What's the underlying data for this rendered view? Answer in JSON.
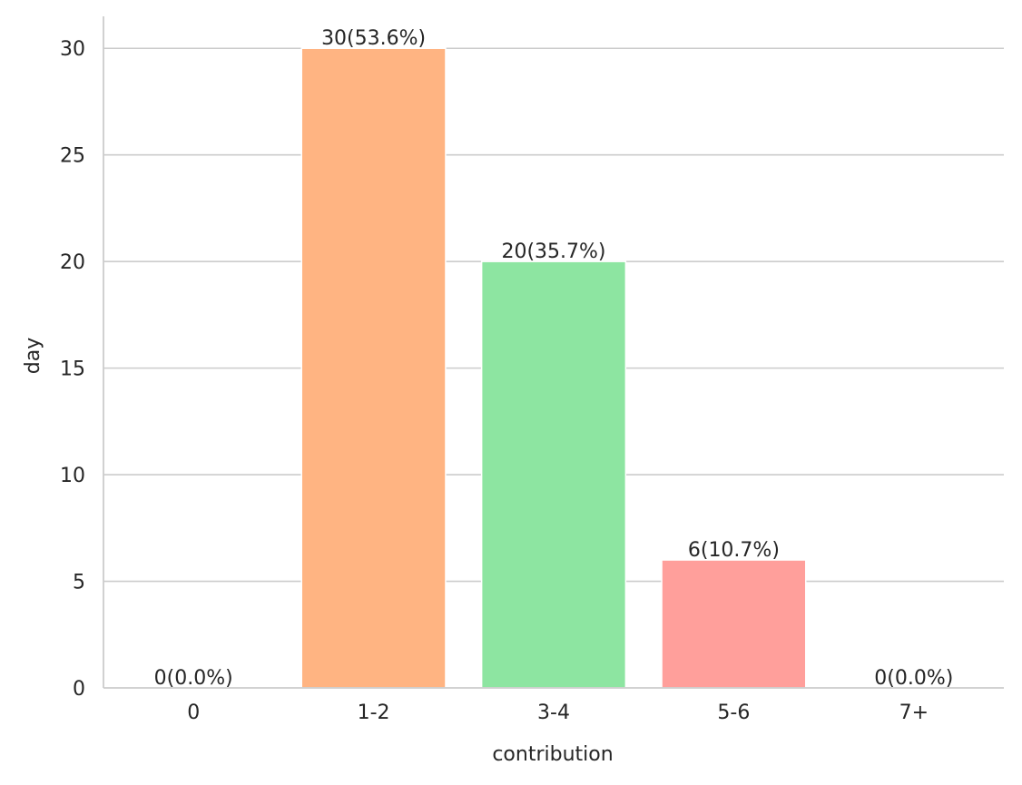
{
  "chart_data": {
    "type": "bar",
    "title": "",
    "xlabel": "contribution",
    "ylabel": "day",
    "categories": [
      "0",
      "1-2",
      "3-4",
      "5-6",
      "7+"
    ],
    "values": [
      0,
      30,
      20,
      6,
      0
    ],
    "labels": [
      "0(0.0%)",
      "30(53.6%)",
      "20(35.7%)",
      "6(10.7%)",
      "0(0.0%)"
    ],
    "colors": [
      "#a1c9f4",
      "#ffb482",
      "#8de5a1",
      "#ff9f9b",
      "#d0bbff"
    ],
    "ylim": [
      0,
      31.5
    ],
    "yticks": [
      0,
      5,
      10,
      15,
      20,
      25,
      30
    ],
    "grid": "y",
    "legend": "none"
  }
}
